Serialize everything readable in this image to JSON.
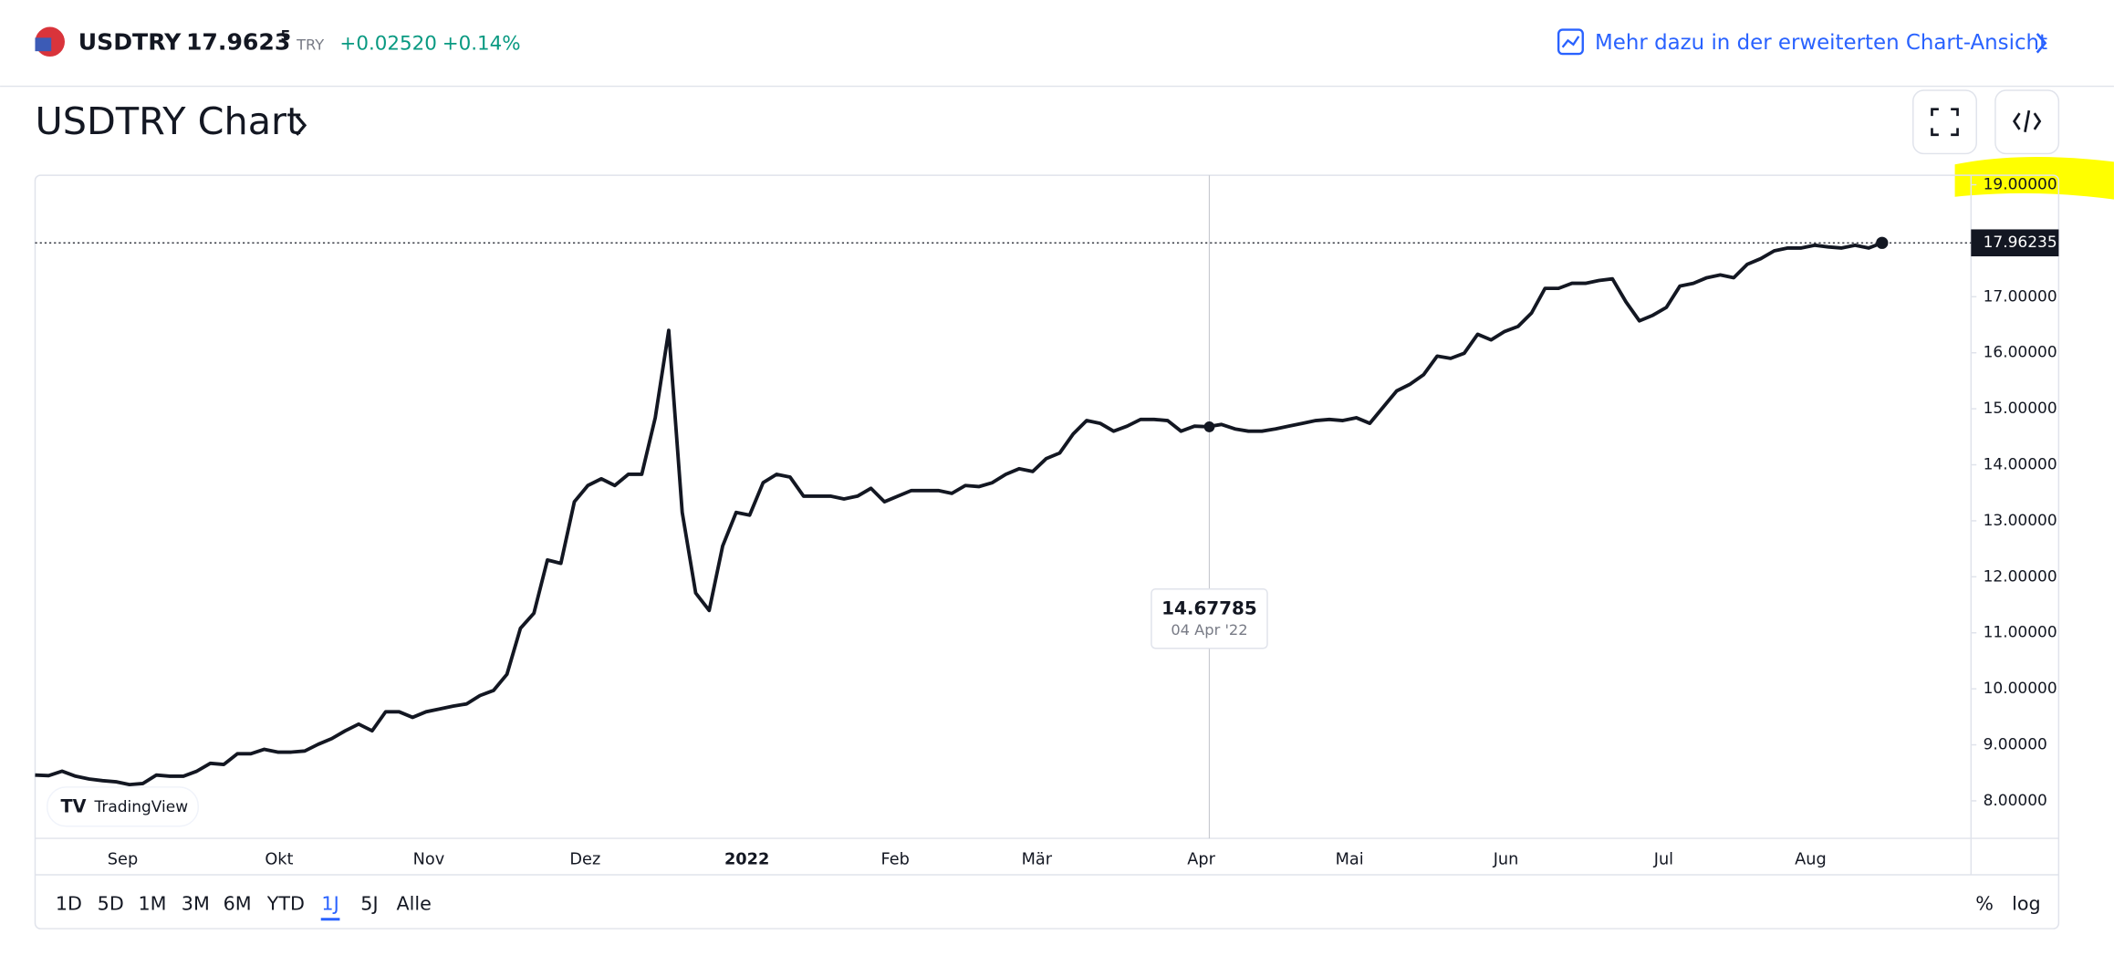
{
  "header": {
    "symbol": "USDTRY",
    "price": "17.9623",
    "price_sup": "5",
    "currency": "TRY",
    "change": "+0.02520",
    "change_pct": "+0.14%",
    "link": "Mehr dazu in der erweiterten Chart-Ansicht"
  },
  "title": "USDTRY Chart",
  "chart_data": {
    "type": "line",
    "color": "#131722",
    "values": [
      8.46,
      8.45,
      8.53,
      8.44,
      8.39,
      8.36,
      8.34,
      8.29,
      8.31,
      8.46,
      8.44,
      8.44,
      8.53,
      8.67,
      8.65,
      8.84,
      8.84,
      8.92,
      8.87,
      8.87,
      8.89,
      9.01,
      9.11,
      9.25,
      9.37,
      9.25,
      9.59,
      9.59,
      9.49,
      9.59,
      9.64,
      9.69,
      9.73,
      9.88,
      9.97,
      10.26,
      11.08,
      11.35,
      12.3,
      12.24,
      13.34,
      13.63,
      13.75,
      13.63,
      13.83,
      13.83,
      14.84,
      16.4,
      13.15,
      11.71,
      11.4,
      12.55,
      13.15,
      13.1,
      13.68,
      13.83,
      13.78,
      13.44,
      13.44,
      13.44,
      13.39,
      13.44,
      13.58,
      13.34,
      13.44,
      13.54,
      13.54,
      13.54,
      13.49,
      13.63,
      13.61,
      13.68,
      13.83,
      13.93,
      13.88,
      14.11,
      14.21,
      14.55,
      14.79,
      14.74,
      14.6,
      14.69,
      14.81,
      14.81,
      14.79,
      14.6,
      14.69,
      14.68,
      14.72,
      14.64,
      14.6,
      14.6,
      14.64,
      14.69,
      14.74,
      14.79,
      14.81,
      14.79,
      14.84,
      14.74,
      15.03,
      15.32,
      15.44,
      15.61,
      15.94,
      15.9,
      15.99,
      16.33,
      16.23,
      16.38,
      16.47,
      16.71,
      17.15,
      17.15,
      17.24,
      17.24,
      17.29,
      17.32,
      16.91,
      16.57,
      16.67,
      16.81,
      17.19,
      17.24,
      17.34,
      17.39,
      17.34,
      17.58,
      17.68,
      17.82,
      17.87,
      17.87,
      17.92,
      17.89,
      17.87,
      17.92,
      17.87,
      17.96235
    ],
    "xlim": [
      0,
      143.6
    ],
    "ylim": [
      7.33,
      19.17
    ],
    "xticks": [
      {
        "value": 6.5,
        "label": "Sep"
      },
      {
        "value": 18.1,
        "label": "Okt"
      },
      {
        "value": 29.2,
        "label": "Nov"
      },
      {
        "value": 40.8,
        "label": "Dez"
      },
      {
        "value": 52.8,
        "label": "2022"
      },
      {
        "value": 63.8,
        "label": "Feb"
      },
      {
        "value": 74.3,
        "label": "Mär"
      },
      {
        "value": 86.5,
        "label": "Apr"
      },
      {
        "value": 97.5,
        "label": "Mai"
      },
      {
        "value": 109.1,
        "label": "Jun"
      },
      {
        "value": 120.8,
        "label": "Jul"
      },
      {
        "value": 131.7,
        "label": "Aug"
      }
    ],
    "yticks": [
      {
        "value": 19,
        "label": "19.00000"
      },
      {
        "value": 17,
        "label": "17.00000"
      },
      {
        "value": 16,
        "label": "16.00000"
      },
      {
        "value": 15,
        "label": "15.00000"
      },
      {
        "value": 14,
        "label": "14.00000"
      },
      {
        "value": 13,
        "label": "13.00000"
      },
      {
        "value": 12,
        "label": "12.00000"
      },
      {
        "value": 11,
        "label": "11.00000"
      },
      {
        "value": 10,
        "label": "10.00000"
      },
      {
        "value": 9,
        "label": "9.00000"
      },
      {
        "value": 8,
        "label": "8.00000"
      }
    ],
    "tooltip": {
      "value": 14.67785,
      "date": "04 Apr '22"
    },
    "watermark": "TradingView"
  },
  "ranges": [
    "1D",
    "5D",
    "1M",
    "3M",
    "6M",
    "YTD",
    "1J",
    "5J",
    "Alle"
  ],
  "selected_range": "1J",
  "scale_buttons": [
    "%",
    "log"
  ]
}
